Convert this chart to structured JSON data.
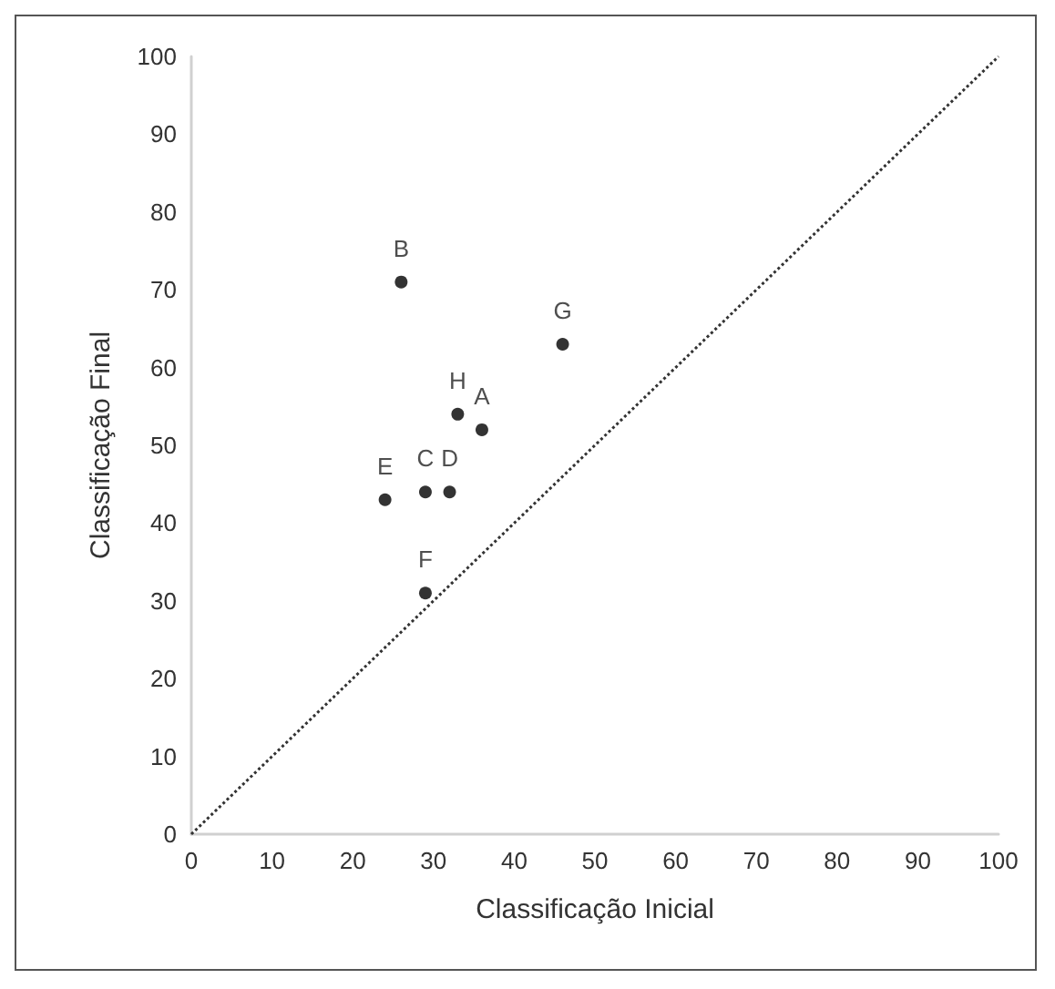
{
  "chart_data": {
    "type": "scatter",
    "xlabel": "Classificação Inicial",
    "ylabel": "Classificação Final",
    "xlim": [
      0,
      100
    ],
    "ylim": [
      0,
      100
    ],
    "xticks": [
      0,
      10,
      20,
      30,
      40,
      50,
      60,
      70,
      80,
      90,
      100
    ],
    "yticks": [
      0,
      10,
      20,
      30,
      40,
      50,
      60,
      70,
      80,
      90,
      100
    ],
    "grid": false,
    "marker": "circle",
    "series": [
      {
        "color": "#000000",
        "x": [
          36,
          26,
          29,
          32,
          24,
          29,
          46,
          33
        ],
        "values": [
          52,
          71,
          44,
          44,
          43,
          31,
          63,
          54
        ]
      },
      {
        "type": "line",
        "color": "#333333",
        "line_style": "dotted",
        "marker": "none",
        "x": [
          0,
          100
        ],
        "values": [
          0,
          100
        ]
      }
    ],
    "annotations": [
      {
        "text": "A",
        "x": 36,
        "y": 52
      },
      {
        "text": "B",
        "x": 26,
        "y": 71
      },
      {
        "text": "C",
        "x": 29,
        "y": 44
      },
      {
        "text": "D",
        "x": 32,
        "y": 44
      },
      {
        "text": "E",
        "x": 24,
        "y": 43
      },
      {
        "text": "F",
        "x": 29,
        "y": 31
      },
      {
        "text": "G",
        "x": 46,
        "y": 63
      },
      {
        "text": "H",
        "x": 33,
        "y": 54
      }
    ]
  }
}
